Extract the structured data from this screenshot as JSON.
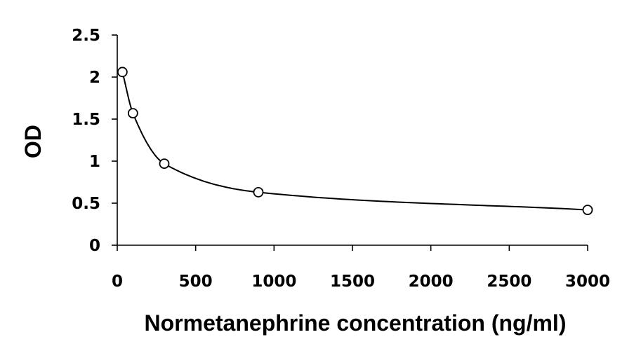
{
  "chart_data": {
    "type": "scatter",
    "title": "",
    "xlabel": "Normetanephrine concentration (ng/ml)",
    "ylabel": "OD",
    "xlim": [
      0,
      3000
    ],
    "ylim": [
      0,
      2.5
    ],
    "x_ticks": [
      0,
      500,
      1000,
      1500,
      2000,
      2500,
      3000
    ],
    "x_tick_labels": [
      "0",
      "500",
      "1000",
      "1500",
      "2000",
      "2500",
      "3000"
    ],
    "y_ticks": [
      0,
      0.5,
      1,
      1.5,
      2,
      2.5
    ],
    "y_tick_labels": [
      "0",
      "0.5",
      "1",
      "1.5",
      "2",
      "2.5"
    ],
    "grid": false,
    "legend": "none",
    "marker": "open-circle",
    "trendline": "smooth fitted curve",
    "colors": {
      "line": "#000000",
      "marker": "#000000"
    },
    "series": [
      {
        "x": [
          33,
          100,
          300,
          900,
          3000
        ],
        "y": [
          2.06,
          1.57,
          0.97,
          0.63,
          0.42
        ]
      }
    ]
  }
}
